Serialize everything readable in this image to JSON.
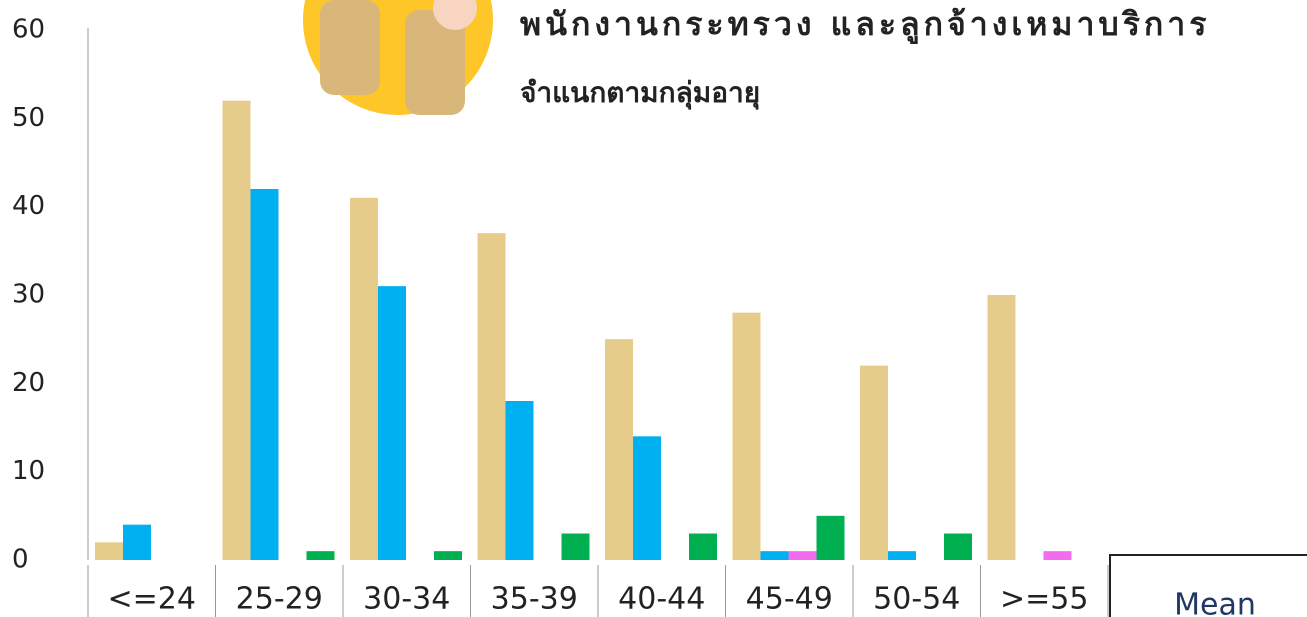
{
  "chart_data": {
    "type": "bar",
    "title": "พนักงานกระทรวง และลูกจ้างเหมาบริการ",
    "subtitle": "จำแนกตามกลุ่มอายุ",
    "annotation": "Mean",
    "categories": [
      "<=24",
      "25-29",
      "30-34",
      "35-39",
      "40-44",
      "45-49",
      "50-54",
      ">=55"
    ],
    "series": [
      {
        "color": "#e6cc8a",
        "values": [
          2,
          52,
          41,
          37,
          25,
          28,
          22,
          30
        ]
      },
      {
        "color": "#00b0f0",
        "values": [
          4,
          42,
          31,
          18,
          14,
          1,
          1,
          0
        ]
      },
      {
        "color": "#f26cf0",
        "values": [
          0,
          0,
          0,
          0,
          0,
          1,
          0,
          1
        ]
      },
      {
        "color": "#00b050",
        "values": [
          0,
          1,
          1,
          3,
          3,
          5,
          3,
          0
        ]
      }
    ],
    "ylim": [
      0,
      60
    ],
    "yticks": [
      0,
      10,
      20,
      30,
      40,
      50,
      60
    ],
    "grid": false
  }
}
